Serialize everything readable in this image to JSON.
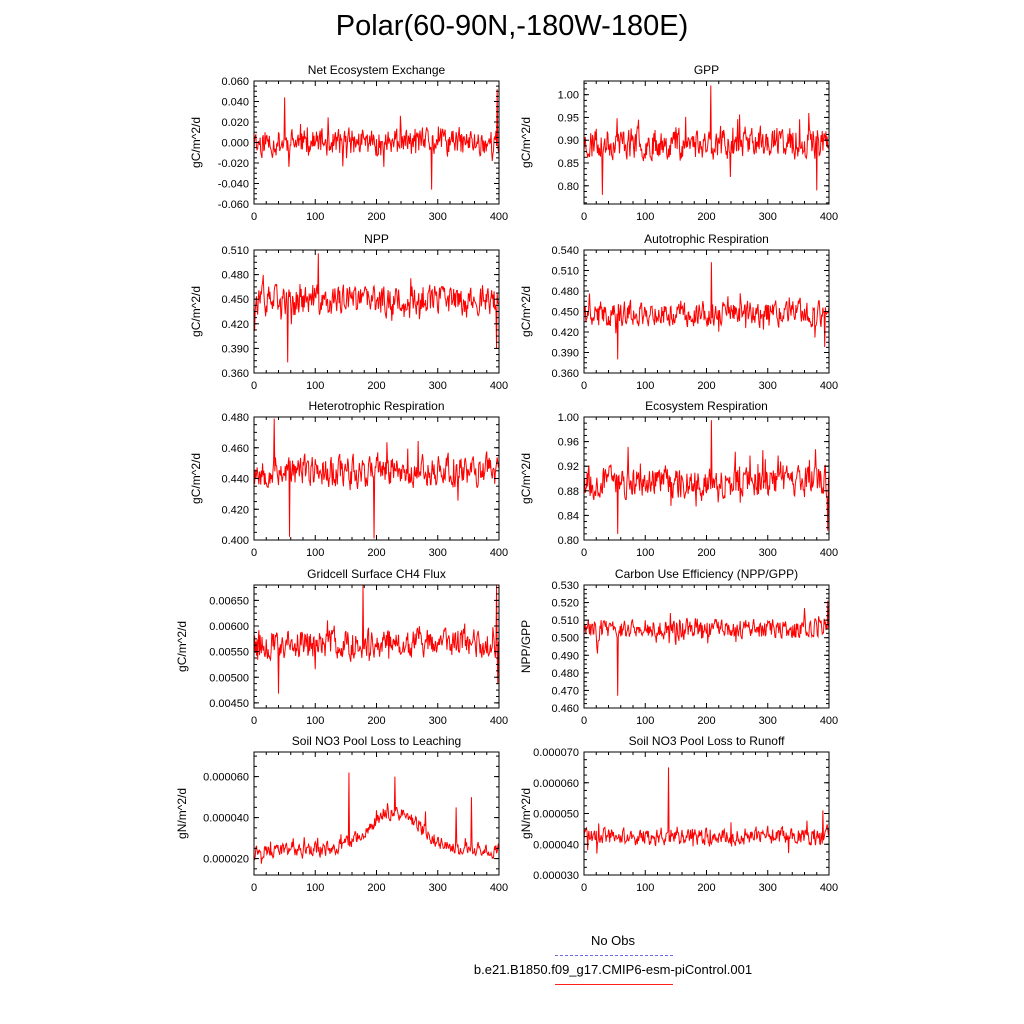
{
  "page": {
    "title": "Polar(60-90N,-180W-180E)"
  },
  "legend": {
    "entries": [
      {
        "label": "No Obs",
        "color": "#6a6ae6",
        "dash": "dashed"
      },
      {
        "label": "b.e21.B1850.f09_g17.CMIP6-esm-piControl.001",
        "color": "#ff2020",
        "dash": "solid"
      }
    ]
  },
  "style": {
    "series_color": "#ff0000",
    "axis_color": "#000000"
  },
  "chart_data": [
    {
      "type": "line",
      "title": "Net Ecosystem Exchange",
      "xlabel": "",
      "ylabel": "gC/m^2/d",
      "xlim": [
        0,
        400
      ],
      "ylim": [
        -0.06,
        0.06
      ],
      "xticks": [
        "0",
        "100",
        "200",
        "300",
        "400"
      ],
      "yticks": [
        "-0.060",
        "-0.040",
        "-0.020",
        "0.000",
        "0.020",
        "0.040",
        "0.060"
      ],
      "series": [
        {
          "mean": 0.0,
          "amp": 0.012,
          "spike": 0.018,
          "peaks": [
            [
              50,
              0.044
            ],
            [
              290,
              -0.046
            ],
            [
              397,
              0.052
            ]
          ],
          "seed": 11
        }
      ]
    },
    {
      "type": "line",
      "title": "GPP",
      "xlabel": "",
      "ylabel": "gC/m^2/d",
      "xlim": [
        0,
        400
      ],
      "ylim": [
        0.76,
        1.03
      ],
      "xticks": [
        "0",
        "100",
        "200",
        "300",
        "400"
      ],
      "yticks": [
        "0.80",
        "0.85",
        "0.90",
        "0.95",
        "1.00"
      ],
      "series": [
        {
          "mean": 0.895,
          "amp": 0.03,
          "spike": 0.05,
          "peaks": [
            [
              207,
              1.02
            ],
            [
              30,
              0.78
            ],
            [
              380,
              0.79
            ]
          ],
          "seed": 23
        }
      ]
    },
    {
      "type": "line",
      "title": "NPP",
      "xlabel": "",
      "ylabel": "gC/m^2/d",
      "xlim": [
        0,
        400
      ],
      "ylim": [
        0.36,
        0.51
      ],
      "xticks": [
        "0",
        "100",
        "200",
        "300",
        "400"
      ],
      "yticks": [
        "0.360",
        "0.390",
        "0.420",
        "0.450",
        "0.480",
        "0.510"
      ],
      "series": [
        {
          "mean": 0.448,
          "amp": 0.016,
          "spike": 0.025,
          "peaks": [
            [
              105,
              0.506
            ],
            [
              55,
              0.373
            ],
            [
              396,
              0.39
            ]
          ],
          "seed": 37
        }
      ]
    },
    {
      "type": "line",
      "title": "Autotrophic Respiration",
      "xlabel": "",
      "ylabel": "gC/m^2/d",
      "xlim": [
        0,
        400
      ],
      "ylim": [
        0.36,
        0.54
      ],
      "xticks": [
        "0",
        "100",
        "200",
        "300",
        "400"
      ],
      "yticks": [
        "0.360",
        "0.390",
        "0.420",
        "0.450",
        "0.480",
        "0.510",
        "0.540"
      ],
      "series": [
        {
          "mean": 0.447,
          "amp": 0.016,
          "spike": 0.028,
          "peaks": [
            [
              208,
              0.522
            ],
            [
              55,
              0.38
            ],
            [
              393,
              0.398
            ]
          ],
          "seed": 41
        }
      ]
    },
    {
      "type": "line",
      "title": "Heterotrophic Respiration",
      "xlabel": "",
      "ylabel": "gC/m^2/d",
      "xlim": [
        0,
        400
      ],
      "ylim": [
        0.4,
        0.48
      ],
      "xticks": [
        "0",
        "100",
        "200",
        "300",
        "400"
      ],
      "yticks": [
        "0.400",
        "0.420",
        "0.440",
        "0.460",
        "0.480"
      ],
      "series": [
        {
          "mean": 0.445,
          "amp": 0.009,
          "spike": 0.014,
          "peaks": [
            [
              33,
              0.479
            ],
            [
              196,
              0.401
            ],
            [
              58,
              0.402
            ]
          ],
          "seed": 53
        }
      ]
    },
    {
      "type": "line",
      "title": "Ecosystem Respiration",
      "xlabel": "",
      "ylabel": "gC/m^2/d",
      "xlim": [
        0,
        400
      ],
      "ylim": [
        0.8,
        1.0
      ],
      "xticks": [
        "0",
        "100",
        "200",
        "300",
        "400"
      ],
      "yticks": [
        "0.80",
        "0.84",
        "0.88",
        "0.92",
        "0.96",
        "1.00"
      ],
      "series": [
        {
          "mean": 0.895,
          "amp": 0.022,
          "spike": 0.038,
          "peaks": [
            [
              208,
              0.995
            ],
            [
              55,
              0.81
            ],
            [
              398,
              0.815
            ]
          ],
          "seed": 67
        }
      ]
    },
    {
      "type": "line",
      "title": "Gridcell Surface CH4 Flux",
      "xlabel": "",
      "ylabel": "gC/m^2/d",
      "xlim": [
        0,
        400
      ],
      "ylim": [
        0.0044,
        0.0068
      ],
      "xticks": [
        "0",
        "100",
        "200",
        "300",
        "400"
      ],
      "yticks": [
        "0.00450",
        "0.00500",
        "0.00550",
        "0.00600",
        "0.00650"
      ],
      "series": [
        {
          "mean": 0.00565,
          "amp": 0.00025,
          "spike": 0.0004,
          "peaks": [
            [
              178,
              0.0068
            ],
            [
              396,
              0.0068
            ],
            [
              40,
              0.00468
            ],
            [
              398,
              0.00487
            ]
          ],
          "seed": 79
        }
      ]
    },
    {
      "type": "line",
      "title": "Carbon Use Efficiency (NPP/GPP)",
      "xlabel": "",
      "ylabel": "NPP/GPP",
      "xlim": [
        0,
        400
      ],
      "ylim": [
        0.46,
        0.53
      ],
      "xticks": [
        "0",
        "100",
        "200",
        "300",
        "400"
      ],
      "yticks": [
        "0.460",
        "0.470",
        "0.480",
        "0.490",
        "0.500",
        "0.510",
        "0.520",
        "0.530"
      ],
      "series": [
        {
          "mean": 0.505,
          "amp": 0.005,
          "spike": 0.008,
          "peaks": [
            [
              55,
              0.467
            ],
            [
              398,
              0.521
            ]
          ],
          "seed": 83
        }
      ]
    },
    {
      "type": "line",
      "title": "Soil NO3 Pool Loss to Leaching",
      "xlabel": "",
      "ylabel": "gN/m^2/d",
      "xlim": [
        0,
        400
      ],
      "ylim": [
        1.2e-05,
        7.2e-05
      ],
      "xticks": [
        "0",
        "100",
        "200",
        "300",
        "400"
      ],
      "yticks": [
        "0.000020",
        "0.000040",
        "0.000060"
      ],
      "series": [
        {
          "mean": 2.4e-05,
          "amp": 3e-06,
          "spike": 4e-06,
          "peaks": [
            [
              155,
              6.2e-05
            ],
            [
              230,
              6e-05
            ],
            [
              355,
              5e-05
            ],
            [
              280,
              4.3e-05
            ],
            [
              330,
              4.5e-05
            ]
          ],
          "seed": 97,
          "hump": [
            [
              230,
              1.8e-05,
              60
            ]
          ]
        }
      ]
    },
    {
      "type": "line",
      "title": "Soil NO3 Pool Loss to Runoff",
      "xlabel": "",
      "ylabel": "gN/m^2/d",
      "xlim": [
        0,
        400
      ],
      "ylim": [
        3e-05,
        7e-05
      ],
      "xticks": [
        "0",
        "100",
        "200",
        "300",
        "400"
      ],
      "yticks": [
        "0.000030",
        "0.000040",
        "0.000050",
        "0.000060",
        "0.000070"
      ],
      "series": [
        {
          "mean": 4.25e-05,
          "amp": 2.5e-06,
          "spike": 4.5e-06,
          "peaks": [
            [
              138,
              6.5e-05
            ],
            [
              390,
              5.1e-05
            ]
          ],
          "seed": 101
        }
      ]
    }
  ]
}
